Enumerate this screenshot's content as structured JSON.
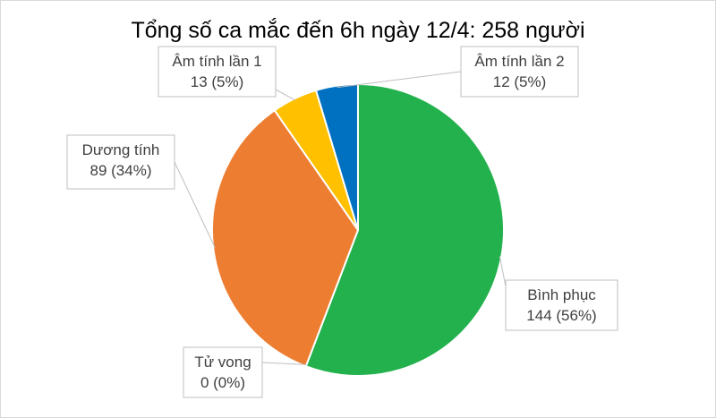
{
  "chart_data": {
    "type": "pie",
    "title": "Tổng số ca mắc đến 6h ngày 12/4: 258 người",
    "total": 258,
    "start_angle_deg": 0,
    "direction": "clockwise",
    "slices": [
      {
        "name": "Bình phục",
        "value": 144,
        "percent_label": "144 (56%)",
        "color": "#22b14c"
      },
      {
        "name": "Tử vong",
        "value": 0,
        "percent_label": "0 (0%)",
        "color": "#a5a5a5"
      },
      {
        "name": "Dương tính",
        "value": 89,
        "percent_label": "89 (34%)",
        "color": "#ed7d31"
      },
      {
        "name": "Âm tính lần 1",
        "value": 13,
        "percent_label": "13 (5%)",
        "color": "#ffc000"
      },
      {
        "name": "Âm tính lần 2",
        "value": 12,
        "percent_label": "12 (5%)",
        "color": "#0070c0"
      }
    ]
  }
}
